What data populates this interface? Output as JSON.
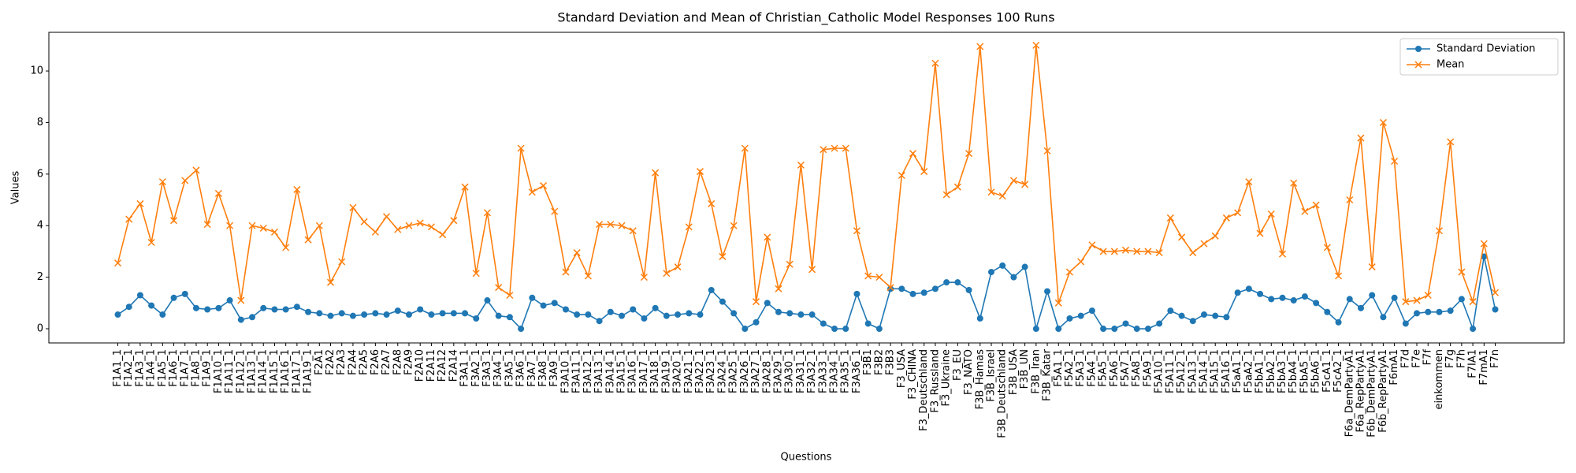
{
  "chart_data": {
    "type": "line",
    "title": "Standard Deviation and Mean of Christian_Catholic Model Responses 100 Runs",
    "xlabel": "Questions",
    "ylabel": "Values",
    "categories": [
      "F1A1_1",
      "F1A2_1",
      "F1A3_1",
      "F1A4_1",
      "F1A5_1",
      "F1A6_1",
      "F1A7_1",
      "F1A8_1",
      "F1A9_1",
      "F1A10_1",
      "F1A11_1",
      "F1A12_1",
      "F1A13_1",
      "F1A14_1",
      "F1A15_1",
      "F1A16_1",
      "F1A17_1",
      "F1A19_1",
      "F2A1",
      "F2A2",
      "F2A3",
      "F2A4",
      "F2A5",
      "F2A6",
      "F2A7",
      "F2A8",
      "F2A9",
      "F2A10",
      "F2A11",
      "F2A12",
      "F2A14",
      "F3A1_1",
      "F3A2_1",
      "F3A3_1",
      "F3A4_1",
      "F3A5_1",
      "F3A6_1",
      "F3A7_1",
      "F3A8_1",
      "F3A9_1",
      "F3A10_1",
      "F3A11_1",
      "F3A12_1",
      "F3A13_1",
      "F3A14_1",
      "F3A15_1",
      "F3A16_1",
      "F3A17_1",
      "F3A18_1",
      "F3A19_1",
      "F3A20_1",
      "F3A21_1",
      "F3A22_1",
      "F3A23_1",
      "F3A24_1",
      "F3A25_1",
      "F3A26_1",
      "F3A27_1",
      "F3A28_1",
      "F3A29_1",
      "F3A30_1",
      "F3A31_1",
      "F3A32_1",
      "F3A33_1",
      "F3A34_1",
      "F3A35_1",
      "F3A36_1",
      "F3B1",
      "F3B2",
      "F3B3",
      "F3_USA",
      "F3_CHINA",
      "F3_Deutschland",
      "F3_Russland",
      "F3_Ukraine",
      "F3_EU",
      "F3_NATO",
      "F3B_Hamas",
      "F3B_Israel",
      "F3B_Deutschland",
      "F3B_USA",
      "F3B_UN",
      "F3B_Iran",
      "F3B_Katar",
      "F5A1_1",
      "F5A2_1",
      "F5A3_1",
      "F5A4_1",
      "F5A5_1",
      "F5A6_1",
      "F5A7_1",
      "F5A8_1",
      "F5A9_1",
      "F5A10_1",
      "F5A11_1",
      "F5A12_1",
      "F5A13_1",
      "F5A14_1",
      "F5A15_1",
      "F5A16_1",
      "F5aA1_1",
      "F5aA2_1",
      "F5bA1_1",
      "F5bA2_1",
      "F5bA3_1",
      "F5bA4_1",
      "F5bA5_1",
      "F5bA6_1",
      "F5cA1_1",
      "F5cA2_1",
      "F6a_DemPartyA1",
      "F6a_RepPartyA1",
      "F6b_DemPartyA1",
      "F6b_RepPartyA1",
      "F6mA1",
      "F7d",
      "F7e",
      "F7f",
      "einkommen",
      "F7g",
      "F7h",
      "F7IA1",
      "F7mA1",
      "F7n"
    ],
    "series": [
      {
        "name": "Standard Deviation",
        "color": "#1f77b4",
        "marker": "o",
        "values": [
          0.55,
          0.85,
          1.3,
          0.9,
          0.55,
          1.2,
          1.35,
          0.8,
          0.75,
          0.8,
          1.1,
          0.35,
          0.45,
          0.8,
          0.75,
          0.75,
          0.85,
          0.65,
          0.6,
          0.5,
          0.6,
          0.5,
          0.55,
          0.6,
          0.55,
          0.7,
          0.55,
          0.75,
          0.55,
          0.6,
          0.6,
          0.6,
          0.4,
          1.1,
          0.5,
          0.45,
          0.0,
          1.2,
          0.9,
          1.0,
          0.75,
          0.55,
          0.55,
          0.3,
          0.65,
          0.5,
          0.75,
          0.4,
          0.8,
          0.5,
          0.55,
          0.6,
          0.55,
          1.5,
          1.05,
          0.6,
          0.0,
          0.25,
          1.0,
          0.65,
          0.6,
          0.55,
          0.55,
          0.2,
          0.0,
          0.0,
          1.35,
          0.2,
          0.0,
          1.55,
          1.55,
          1.35,
          1.4,
          1.55,
          1.8,
          1.8,
          1.5,
          0.4,
          2.2,
          2.45,
          2.0,
          2.4,
          0.0,
          1.45,
          0.0,
          0.4,
          0.5,
          0.7,
          0.0,
          0.0,
          0.2,
          0.0,
          0.0,
          0.2,
          0.7,
          0.5,
          0.3,
          0.55,
          0.5,
          0.45,
          1.4,
          1.55,
          1.35,
          1.15,
          1.2,
          1.1,
          1.25,
          1.0,
          0.65,
          0.25,
          1.15,
          0.8,
          1.3,
          0.45,
          1.2,
          0.2,
          0.6,
          0.65,
          0.65,
          0.7,
          1.15,
          0.0,
          2.8,
          0.75
        ]
      },
      {
        "name": "Mean",
        "color": "#ff7f0e",
        "marker": "x",
        "values": [
          2.55,
          4.25,
          4.85,
          3.35,
          5.7,
          4.2,
          5.75,
          6.15,
          4.05,
          5.25,
          4.0,
          1.1,
          4.0,
          3.9,
          3.75,
          3.15,
          5.4,
          3.45,
          4.0,
          1.8,
          2.6,
          4.7,
          4.15,
          3.75,
          4.35,
          3.85,
          4.0,
          4.1,
          3.95,
          3.65,
          4.2,
          5.5,
          2.15,
          4.5,
          1.6,
          1.3,
          7.0,
          5.3,
          5.55,
          4.55,
          2.2,
          2.95,
          2.05,
          4.05,
          4.05,
          4.0,
          3.8,
          2.0,
          6.05,
          2.15,
          2.4,
          3.95,
          6.1,
          4.85,
          2.8,
          4.0,
          7.0,
          1.05,
          3.55,
          1.55,
          2.5,
          6.35,
          2.3,
          6.95,
          7.0,
          7.0,
          3.8,
          2.05,
          2.0,
          1.6,
          5.95,
          6.8,
          6.1,
          10.3,
          5.2,
          5.5,
          6.8,
          10.95,
          5.3,
          5.15,
          5.75,
          5.6,
          11.0,
          6.9,
          1.0,
          2.2,
          2.6,
          3.25,
          3.0,
          3.0,
          3.05,
          3.0,
          3.0,
          2.95,
          4.3,
          3.55,
          2.95,
          3.3,
          3.6,
          4.3,
          4.5,
          5.7,
          3.7,
          4.45,
          2.9,
          5.65,
          4.55,
          4.8,
          3.15,
          2.05,
          5.0,
          7.4,
          2.4,
          8.0,
          6.5,
          1.05,
          1.1,
          1.3,
          3.8,
          7.25,
          2.2,
          1.05,
          3.3,
          1.4
        ]
      }
    ],
    "ylim": [
      -0.55,
      11.5
    ],
    "yticks": [
      0,
      2,
      4,
      6,
      8,
      10
    ],
    "grid": false,
    "legend": "upper right"
  }
}
